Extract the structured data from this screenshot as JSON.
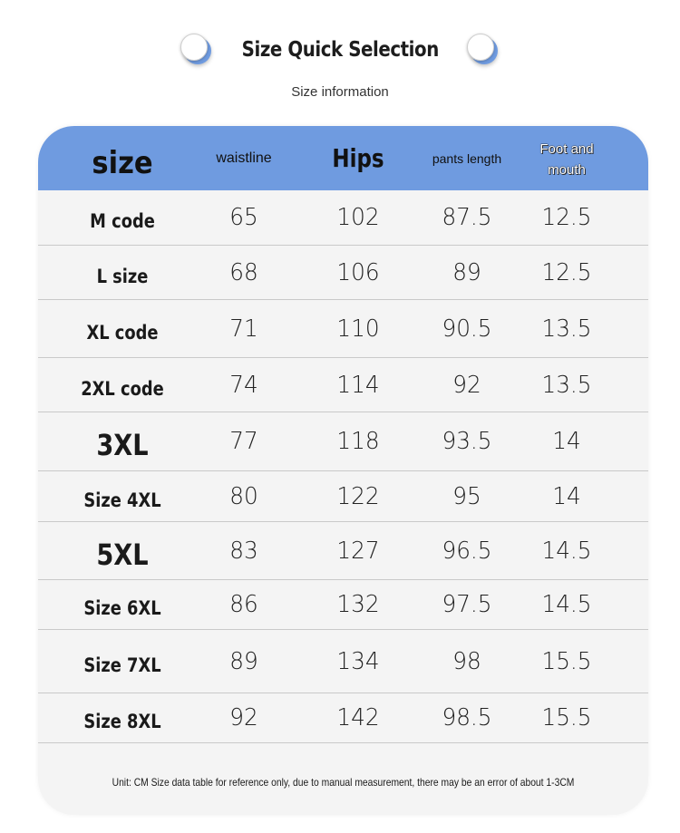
{
  "header": {
    "title": "Size Quick Selection",
    "subtitle": "Size information",
    "left_icon": "circle-bubble-icon",
    "right_icon": "circle-bubble-icon"
  },
  "colors": {
    "accent": "#6f9be0",
    "card_background": "#f4f4f4",
    "row_divider": "#c9c9c9"
  },
  "table": {
    "columns": [
      "size",
      "waistline",
      "Hips",
      "pants length",
      "Foot and mouth"
    ],
    "rows": [
      {
        "size": "M code",
        "waistline": "65",
        "hips": "102",
        "pants_length": "87.5",
        "foot_mouth": "12.5"
      },
      {
        "size": "L size",
        "waistline": "68",
        "hips": "106",
        "pants_length": "89",
        "foot_mouth": "12.5"
      },
      {
        "size": "XL code",
        "waistline": "71",
        "hips": "110",
        "pants_length": "90.5",
        "foot_mouth": "13.5"
      },
      {
        "size": "2XL code",
        "waistline": "74",
        "hips": "114",
        "pants_length": "92",
        "foot_mouth": "13.5"
      },
      {
        "size": "3XL",
        "waistline": "77",
        "hips": "118",
        "pants_length": "93.5",
        "foot_mouth": "14"
      },
      {
        "size": "Size 4XL",
        "waistline": "80",
        "hips": "122",
        "pants_length": "95",
        "foot_mouth": "14"
      },
      {
        "size": "5XL",
        "waistline": "83",
        "hips": "127",
        "pants_length": "96.5",
        "foot_mouth": "14.5"
      },
      {
        "size": "Size 6XL",
        "waistline": "86",
        "hips": "132",
        "pants_length": "97.5",
        "foot_mouth": "14.5"
      },
      {
        "size": "Size 7XL",
        "waistline": "89",
        "hips": "134",
        "pants_length": "98",
        "foot_mouth": "15.5"
      },
      {
        "size": "Size 8XL",
        "waistline": "92",
        "hips": "142",
        "pants_length": "98.5",
        "foot_mouth": "15.5"
      }
    ],
    "note": "Unit: CM Size data table for reference only, due to manual measurement, there may be an error of about 1-3CM"
  }
}
